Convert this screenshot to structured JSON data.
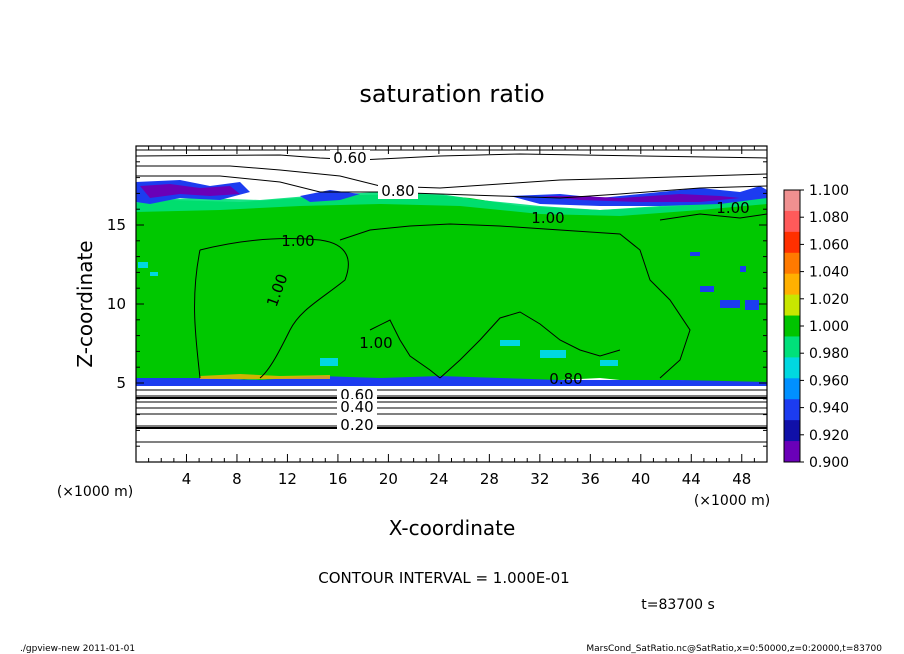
{
  "chart_data": {
    "type": "heatmap",
    "title": "saturation ratio",
    "xlabel": "X-coordinate",
    "ylabel": "Z-coordinate",
    "x_unit": "(×1000 m)",
    "y_unit": "(×1000 m)",
    "xlim": [
      0,
      50
    ],
    "ylim": [
      0,
      20
    ],
    "x_ticks": [
      "4",
      "8",
      "12",
      "16",
      "20",
      "24",
      "28",
      "32",
      "36",
      "40",
      "44",
      "48"
    ],
    "y_ticks": [
      "5",
      "10",
      "15"
    ],
    "colorbar": {
      "levels": [
        "1.100",
        "1.080",
        "1.060",
        "1.040",
        "1.020",
        "1.000",
        "0.980",
        "0.960",
        "0.940",
        "0.920",
        "0.900"
      ],
      "colors": [
        "#f09090",
        "#ff5a5a",
        "#ff3000",
        "#ff7a00",
        "#ffb000",
        "#c8e600",
        "#00c400",
        "#00e07a",
        "#00d8e0",
        "#0090ff",
        "#1c3cf0",
        "#1010a8",
        "#6a00b8"
      ]
    },
    "contour_labels": [
      "0.60",
      "0.80",
      "1.00",
      "1.00",
      "1.00",
      "1.00",
      "1.00",
      "0.80",
      "0.60",
      "0.40",
      "0.20"
    ],
    "contour_interval_text": "CONTOUR INTERVAL = 1.000E-01",
    "time_text": "t=83700 s"
  },
  "footer": {
    "left": "./gpview-new 2011-01-01",
    "right": "MarsCond_SatRatio.nc@SatRatio,x=0:50000,z=0:20000,t=83700"
  }
}
